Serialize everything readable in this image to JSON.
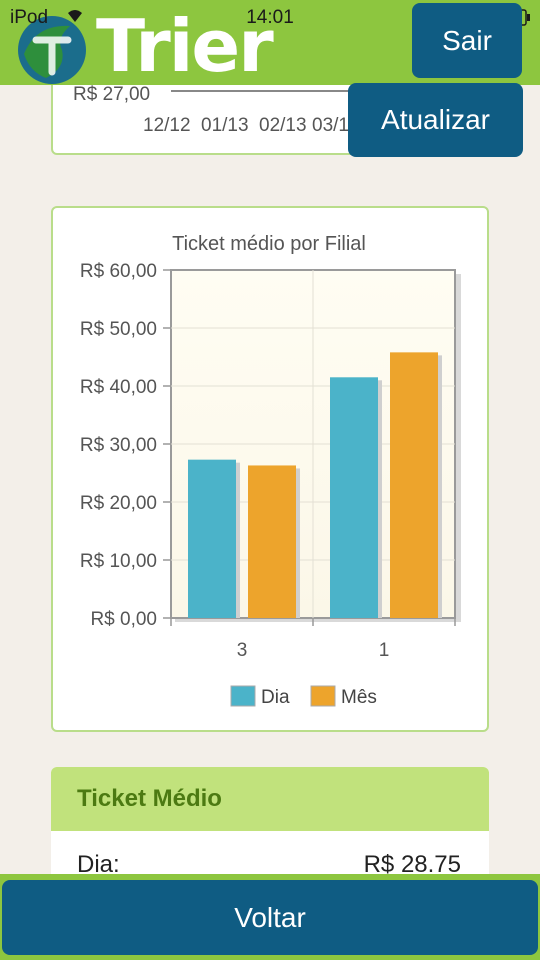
{
  "status_bar": {
    "carrier": "iPod",
    "time": "14:01"
  },
  "header": {
    "logo_text": "Trier",
    "logout_label": "Sair",
    "refresh_label": "Atualizar"
  },
  "top_chart": {
    "y_tick_label": "R$ 27,00",
    "x_tick_labels": [
      "12/12",
      "01/13",
      "02/13",
      "03/1"
    ]
  },
  "chart_data": {
    "type": "bar",
    "title": "Ticket médio por Filial",
    "categories": [
      "3",
      "1"
    ],
    "series": [
      {
        "name": "Dia",
        "color": "#4bb3c9",
        "values": [
          27.3,
          41.5
        ]
      },
      {
        "name": "Mês",
        "color": "#eda42c",
        "values": [
          26.3,
          45.8
        ]
      }
    ],
    "ylim": [
      0,
      60
    ],
    "y_ticks": [
      0,
      10,
      20,
      30,
      40,
      50,
      60
    ],
    "y_tick_labels": [
      "R$ 0,00",
      "R$ 10,00",
      "R$ 20,00",
      "R$ 30,00",
      "R$ 40,00",
      "R$ 50,00",
      "R$ 60,00"
    ],
    "grid": true,
    "legend": "bottom"
  },
  "ticket_card": {
    "title": "Ticket Médio",
    "row_label": "Dia:",
    "row_value": "R$ 28.75"
  },
  "footer": {
    "back_label": "Voltar"
  }
}
